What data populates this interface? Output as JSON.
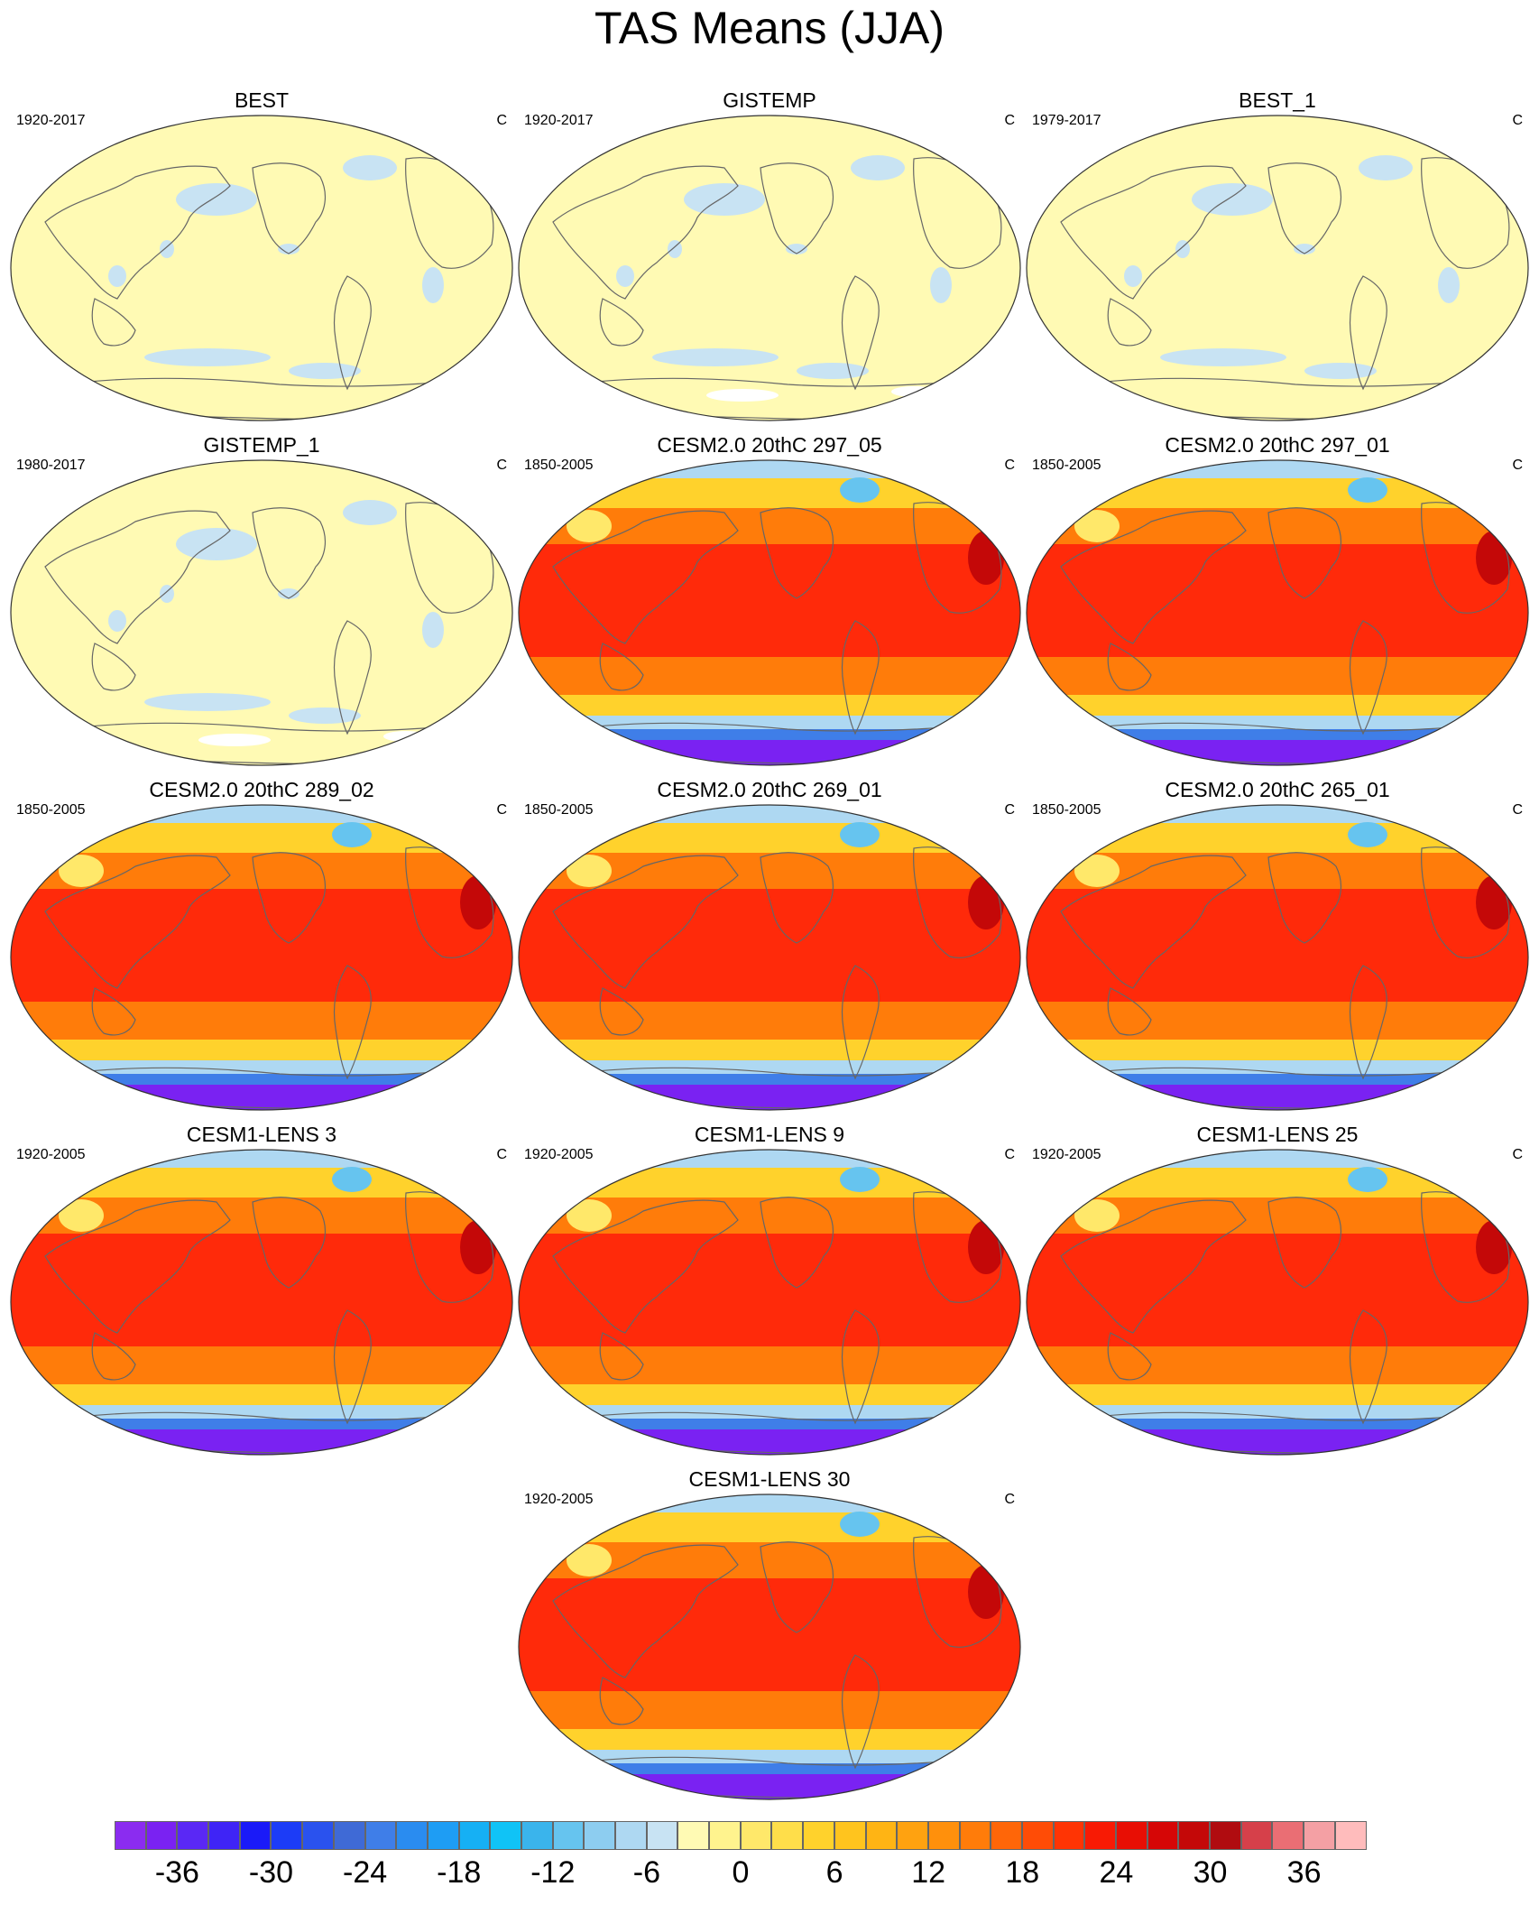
{
  "figure": {
    "title": "TAS Means (JJA)",
    "units": "C"
  },
  "panels": [
    {
      "id": "best",
      "title": "BEST",
      "years": "1920-2017",
      "units": "C",
      "kind": "obs",
      "white_patch": false
    },
    {
      "id": "gistemp",
      "title": "GISTEMP",
      "years": "1920-2017",
      "units": "C",
      "kind": "obs",
      "white_patch": true
    },
    {
      "id": "best1",
      "title": "BEST_1",
      "years": "1979-2017",
      "units": "C",
      "kind": "obs",
      "white_patch": false
    },
    {
      "id": "gistemp1",
      "title": "GISTEMP_1",
      "years": "1980-2017",
      "units": "C",
      "kind": "obs",
      "white_patch": true
    },
    {
      "id": "cesm2_297_05",
      "title": "CESM2.0 20thC 297_05",
      "years": "1850-2005",
      "units": "C",
      "kind": "model"
    },
    {
      "id": "cesm2_297_01",
      "title": "CESM2.0 20thC 297_01",
      "years": "1850-2005",
      "units": "C",
      "kind": "model"
    },
    {
      "id": "cesm2_289_02",
      "title": "CESM2.0 20thC 289_02",
      "years": "1850-2005",
      "units": "C",
      "kind": "model"
    },
    {
      "id": "cesm2_269_01",
      "title": "CESM2.0 20thC 269_01",
      "years": "1850-2005",
      "units": "C",
      "kind": "model"
    },
    {
      "id": "cesm2_265_01",
      "title": "CESM2.0 20thC 265_01",
      "years": "1850-2005",
      "units": "C",
      "kind": "model"
    },
    {
      "id": "lens3",
      "title": "CESM1-LENS 3",
      "years": "1920-2005",
      "units": "C",
      "kind": "model"
    },
    {
      "id": "lens9",
      "title": "CESM1-LENS 9",
      "years": "1920-2005",
      "units": "C",
      "kind": "model"
    },
    {
      "id": "lens25",
      "title": "CESM1-LENS 25",
      "years": "1920-2005",
      "units": "C",
      "kind": "model"
    },
    {
      "id": "lens30",
      "title": "CESM1-LENS 30",
      "years": "1920-2005",
      "units": "C",
      "kind": "model"
    }
  ],
  "colorbar": {
    "labels": [
      "-36",
      "-30",
      "-24",
      "-18",
      "-12",
      "-6",
      "0",
      "6",
      "12",
      "18",
      "24",
      "30",
      "36"
    ],
    "colors": [
      "#8b2cf0",
      "#7a22f2",
      "#5a28f5",
      "#3f24f6",
      "#1a1af8",
      "#1c3cf7",
      "#2a52ee",
      "#3f6ad6",
      "#3f7ee8",
      "#2a8cf0",
      "#1e9df4",
      "#16b0f4",
      "#10c3f6",
      "#3ab4ec",
      "#66c4ef",
      "#8dcdf0",
      "#aed8f2",
      "#c8e3f3",
      "#fffab4",
      "#fff38e",
      "#ffe86a",
      "#ffde4a",
      "#ffd22c",
      "#ffc41e",
      "#ffb414",
      "#ffa210",
      "#ff900c",
      "#ff7c0a",
      "#ff6608",
      "#ff4c06",
      "#ff3404",
      "#f81a04",
      "#e80e04",
      "#d60606",
      "#c40808",
      "#b00c10",
      "#d6404a",
      "#ea6e74",
      "#f4a0a4",
      "#ffbcbc"
    ],
    "first_label_index": 2,
    "label_step": 3
  },
  "map_colors": {
    "obs_land": "#fffab4",
    "obs_cool": "#c8e3f3",
    "obs_white": "#ffffff",
    "tropics": "#ff2a0a",
    "midlat": "#ff7c0a",
    "subpolar": "#ffd22c",
    "cold": "#aed8f2",
    "colder": "#3f7ee8",
    "antarctic": "#7a22f2",
    "coast": "#666666"
  }
}
